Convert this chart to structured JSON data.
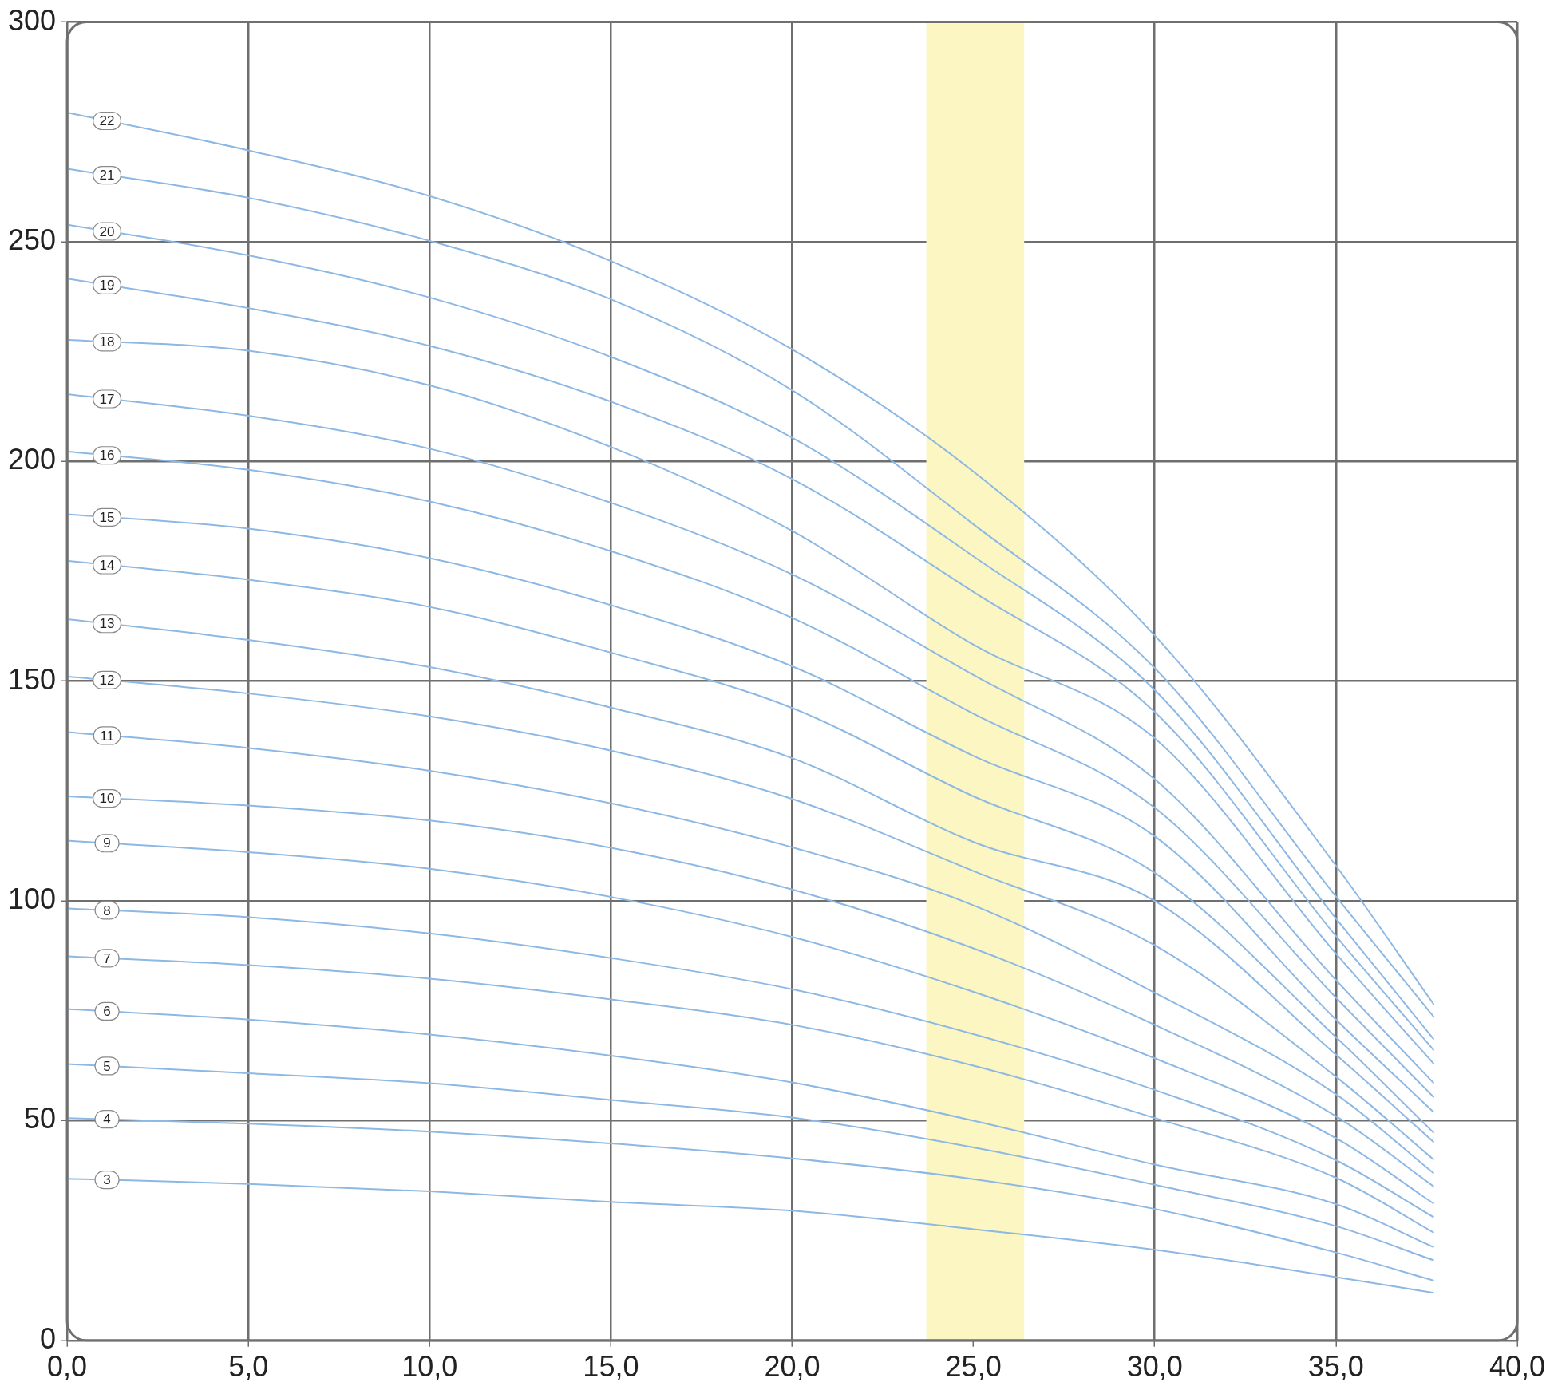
{
  "chart_data": {
    "type": "line",
    "x": [
      0,
      5,
      10,
      15,
      20,
      25,
      30,
      35,
      37.7
    ],
    "xlim": [
      0,
      40
    ],
    "xticks": [
      {
        "value": 0,
        "label": "0,0"
      },
      {
        "value": 5,
        "label": "5,0"
      },
      {
        "value": 10,
        "label": "10,0"
      },
      {
        "value": 15,
        "label": "15,0"
      },
      {
        "value": 20,
        "label": "20,0"
      },
      {
        "value": 25,
        "label": "25,0"
      },
      {
        "value": 30,
        "label": "30,0"
      },
      {
        "value": 35,
        "label": "35,0"
      },
      {
        "value": 40,
        "label": "40,0"
      }
    ],
    "ylim": [
      0,
      300
    ],
    "yticks": [
      0,
      50,
      100,
      150,
      200,
      250,
      300
    ],
    "grid": true,
    "marker": "none",
    "bands": [
      {
        "axis": "x",
        "from": 23.7,
        "to": 26.4,
        "color": "#fbf6c2"
      }
    ],
    "series": [
      {
        "name": "22",
        "color": "#8db8e3",
        "values": [
          279.4,
          270.8,
          260.4,
          245.6,
          225.5,
          197.7,
          160.4,
          108,
          76.4
        ]
      },
      {
        "name": "21",
        "color": "#8db8e3",
        "values": [
          266.6,
          260,
          250.2,
          236.9,
          216.2,
          185.7,
          153,
          101,
          73.6
        ]
      },
      {
        "name": "20",
        "color": "#8db8e3",
        "values": [
          253.9,
          246.9,
          237.3,
          223.8,
          205.4,
          178.4,
          148,
          96,
          68.5
        ]
      },
      {
        "name": "19",
        "color": "#8db8e3",
        "values": [
          241.6,
          234.9,
          226.3,
          213.6,
          196,
          170.3,
          143,
          92,
          66
        ]
      },
      {
        "name": "18",
        "color": "#8db8e3",
        "values": [
          227.7,
          225.2,
          217.3,
          203.3,
          184.2,
          158.3,
          137,
          88,
          62.9
        ]
      },
      {
        "name": "17",
        "color": "#8db8e3",
        "values": [
          215.3,
          210.4,
          202.9,
          190.6,
          174.3,
          151.4,
          127.7,
          82,
          58.5
        ]
      },
      {
        "name": "16",
        "color": "#8db8e3",
        "values": [
          202.3,
          198.1,
          190.9,
          179.6,
          164.4,
          142.6,
          121.2,
          78,
          55.3
        ]
      },
      {
        "name": "15",
        "color": "#8db8e3",
        "values": [
          188,
          184.7,
          178,
          167.3,
          153.4,
          133,
          114.7,
          73,
          51.9
        ]
      },
      {
        "name": "14",
        "color": "#8db8e3",
        "values": [
          177.4,
          173.1,
          166.9,
          156.5,
          143.9,
          123.8,
          106.4,
          69,
          47.2
        ]
      },
      {
        "name": "13",
        "color": "#8db8e3",
        "values": [
          164.1,
          159.4,
          153.2,
          144,
          132.5,
          113.4,
          100,
          65,
          45.1
        ]
      },
      {
        "name": "12",
        "color": "#8db8e3",
        "values": [
          151.1,
          147.2,
          142,
          134.2,
          123.2,
          106.8,
          89.9,
          60,
          41.1
        ]
      },
      {
        "name": "11",
        "color": "#8db8e3",
        "values": [
          138.4,
          134.8,
          129.6,
          122.2,
          112.2,
          99,
          79.1,
          56,
          38
        ]
      },
      {
        "name": "10",
        "color": "#8db8e3",
        "values": [
          123.8,
          121.7,
          118.3,
          112.1,
          102.6,
          89.2,
          71.8,
          51,
          35
        ]
      },
      {
        "name": "9",
        "color": "#8db8e3",
        "values": [
          113.7,
          111.1,
          107.3,
          100.9,
          91.8,
          79.3,
          64.2,
          46,
          31.1
        ]
      },
      {
        "name": "8",
        "color": "#8db8e3",
        "values": [
          98.3,
          96.3,
          92.6,
          87,
          79.9,
          69.7,
          57,
          41,
          28
        ]
      },
      {
        "name": "7",
        "color": "#8db8e3",
        "values": [
          87.4,
          85.4,
          82.3,
          77.6,
          71.8,
          62.5,
          50.6,
          37,
          24.5
        ]
      },
      {
        "name": "6",
        "color": "#8db8e3",
        "values": [
          75.4,
          73,
          69.6,
          64.8,
          58.7,
          50,
          40,
          31,
          21.2
        ]
      },
      {
        "name": "5",
        "color": "#8db8e3",
        "values": [
          62.9,
          60.8,
          58.5,
          54.7,
          50.7,
          43.9,
          35.4,
          26,
          18.2
        ]
      },
      {
        "name": "4",
        "color": "#8db8e3",
        "values": [
          50.6,
          49.3,
          47.5,
          44.8,
          41.4,
          36.7,
          29.9,
          20,
          13.6
        ]
      },
      {
        "name": "3",
        "color": "#8db8e3",
        "values": [
          36.8,
          35.6,
          33.9,
          31.5,
          29.5,
          25.3,
          20.6,
          14.4,
          10.8
        ]
      }
    ]
  }
}
